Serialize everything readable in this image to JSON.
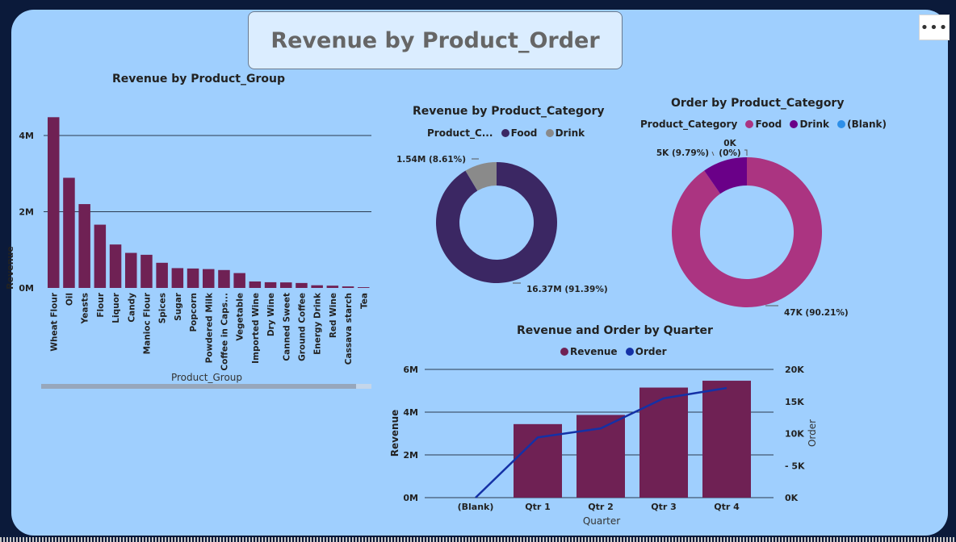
{
  "report": {
    "title": "Revenue by Product_Order",
    "more_options_label": "•••"
  },
  "colors": {
    "bar_product_group": "#6f2154",
    "food_revenue": "#3b2763",
    "drink_revenue": "#8a8a8a",
    "food_order": "#ab3481",
    "drink_order": "#6a0088",
    "blank_order": "#2d8fe8",
    "quarter_revenue": "#6f2154",
    "quarter_order": "#1431a6",
    "canvas": "#9fcffe"
  },
  "chart_data": [
    {
      "id": "revenue-by-product-group",
      "type": "bar",
      "title": "Revenue by Product_Group",
      "xlabel": "Product_Group",
      "ylabel": "Revenue",
      "ylim": [
        0,
        4800000
      ],
      "yticks": [
        "0M",
        "2M",
        "4M"
      ],
      "categories": [
        "Wheat Flour",
        "Oil",
        "Yeasts",
        "Flour",
        "Liquor",
        "Candy",
        "Manioc Flour",
        "Spices",
        "Sugar",
        "Popcorn",
        "Powdered Milk",
        "Coffee in Caps...",
        "Vegetable",
        "Imported Wine",
        "Dry Wine",
        "Canned Sweet",
        "Ground Coffee",
        "Energy Drink",
        "Red Wine",
        "Cassava starch",
        "Tea"
      ],
      "values": [
        4480000,
        2890000,
        2200000,
        1660000,
        1140000,
        920000,
        870000,
        660000,
        520000,
        510000,
        495000,
        470000,
        390000,
        170000,
        150000,
        145000,
        130000,
        70000,
        60000,
        40000,
        20000
      ]
    },
    {
      "id": "revenue-by-product-category",
      "type": "pie",
      "title": "Revenue by Product_Category",
      "legend_title": "Product_C...",
      "labels": [
        "Food",
        "Drink"
      ],
      "values": [
        16370000,
        1540000
      ],
      "data_labels": [
        "16.37M (91.39%)",
        "1.54M (8.61%)"
      ]
    },
    {
      "id": "order-by-product-category",
      "type": "pie",
      "title": "Order by Product_Category",
      "legend_title": "Product_Category",
      "labels": [
        "Food",
        "Drink",
        "(Blank)"
      ],
      "values": [
        47000,
        5000,
        0
      ],
      "data_labels": [
        "47K (90.21%)",
        "5K (9.79%)",
        "0K (0%)"
      ],
      "data_label_lines": [
        [
          "47K (90.21%)"
        ],
        [
          "5K (9.79%)"
        ],
        [
          "0K",
          "(0%)"
        ]
      ]
    },
    {
      "id": "revenue-and-order-by-quarter",
      "type": "bar",
      "title": "Revenue and Order by Quarter",
      "xlabel": "Quarter",
      "ylabel": "Revenue",
      "y2label": "Order",
      "ylim": [
        0,
        6000000
      ],
      "y2lim": [
        0,
        20000
      ],
      "yticks": [
        "0M",
        "2M",
        "4M",
        "6M"
      ],
      "y2ticks": [
        "0K",
        "5K",
        "10K",
        "15K",
        "20K"
      ],
      "categories": [
        "(Blank)",
        "Qtr 1",
        "Qtr 2",
        "Qtr 3",
        "Qtr 4"
      ],
      "series": [
        {
          "name": "Revenue",
          "type": "bar",
          "values": [
            0,
            3440000,
            3870000,
            5150000,
            5470000
          ]
        },
        {
          "name": "Order",
          "type": "line",
          "values": [
            0,
            9400,
            10800,
            15500,
            17100
          ]
        }
      ]
    }
  ]
}
